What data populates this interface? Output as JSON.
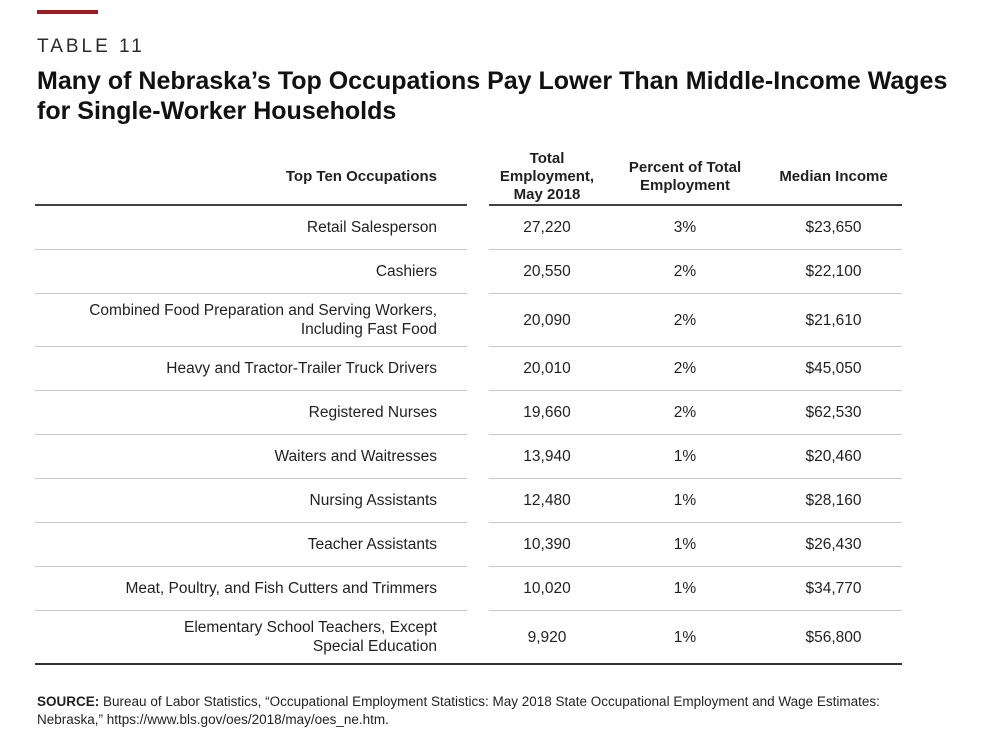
{
  "page": {
    "kicker": "TABLE 11",
    "title_line1": "Many of Nebraska’s Top Occupations Pay Lower Than Middle-Income Wages",
    "title_line2": "for Single-Worker Households",
    "accent_color": "#9e1c21",
    "rule_dark_color": "#414141",
    "rule_light_color": "#c9c9c9"
  },
  "table": {
    "columns": [
      "Top Ten Occupations",
      "Total Employment,\nMay 2018",
      "Percent of Total\nEmployment",
      "Median Income"
    ],
    "rows": [
      {
        "occupation": "Retail Salesperson",
        "employment": "27,220",
        "percent": "3%",
        "income": "$23,650"
      },
      {
        "occupation": "Cashiers",
        "employment": "20,550",
        "percent": "2%",
        "income": "$22,100"
      },
      {
        "occupation": "Combined Food Preparation and Serving Workers,\nIncluding Fast Food",
        "employment": "20,090",
        "percent": "2%",
        "income": "$21,610"
      },
      {
        "occupation": "Heavy and Tractor-Trailer Truck Drivers",
        "employment": "20,010",
        "percent": "2%",
        "income": "$45,050"
      },
      {
        "occupation": "Registered Nurses",
        "employment": "19,660",
        "percent": "2%",
        "income": "$62,530"
      },
      {
        "occupation": "Waiters and Waitresses",
        "employment": "13,940",
        "percent": "1%",
        "income": "$20,460"
      },
      {
        "occupation": "Nursing Assistants",
        "employment": "12,480",
        "percent": "1%",
        "income": "$28,160"
      },
      {
        "occupation": "Teacher Assistants",
        "employment": "10,390",
        "percent": "1%",
        "income": "$26,430"
      },
      {
        "occupation": "Meat, Poultry, and Fish Cutters and Trimmers",
        "employment": "10,020",
        "percent": "1%",
        "income": "$34,770"
      },
      {
        "occupation": "Elementary School Teachers, Except\nSpecial Education",
        "employment": "9,920",
        "percent": "1%",
        "income": "$56,800"
      }
    ]
  },
  "source": {
    "label": "SOURCE:",
    "line1": "Bureau of Labor Statistics, “Occupational Employment Statistics: May 2018 State Occupational Employment and Wage Estimates:",
    "line2": "Nebraska,” https://www.bls.gov/oes/2018/may/oes_ne.htm."
  }
}
